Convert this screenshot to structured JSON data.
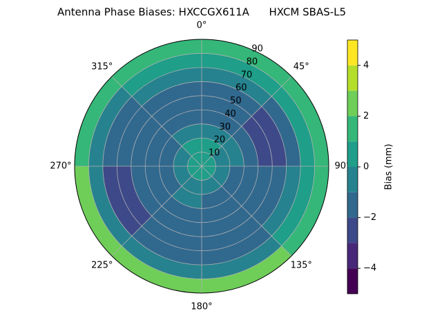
{
  "chart_data": {
    "type": "polar_contour",
    "title": "Antenna Phase Biases: HXCCGX611A      HXCM SBAS-L5",
    "azimuth_edges": [
      0,
      45,
      90,
      135,
      180,
      225,
      270,
      315,
      360
    ],
    "zenith_edges": [
      0,
      10,
      20,
      30,
      40,
      50,
      60,
      70,
      80,
      90
    ],
    "values": [
      [
        0.5,
        0.5,
        0.5,
        0.5,
        0.5,
        0.5,
        0.5,
        0.5
      ],
      [
        0.5,
        -0.5,
        -0.5,
        -0.5,
        -0.5,
        -0.5,
        -0.5,
        0.5
      ],
      [
        -0.5,
        -0.5,
        -1.5,
        -1.5,
        -0.5,
        -1.5,
        -1.5,
        -0.5
      ],
      [
        -1.5,
        -1.5,
        -1.5,
        -1.5,
        -1.5,
        -1.5,
        -1.5,
        -1.5
      ],
      [
        -1.5,
        -2.5,
        -1.5,
        -1.5,
        -1.5,
        -1.5,
        -1.5,
        -1.5
      ],
      [
        -1.5,
        -2.5,
        -1.5,
        -1.5,
        -1.5,
        -2.5,
        -1.5,
        -1.5
      ],
      [
        -0.5,
        -1.5,
        -0.5,
        -1.5,
        -1.5,
        -2.5,
        -1.5,
        -0.5
      ],
      [
        0.5,
        0.5,
        0.5,
        -0.5,
        -0.5,
        -0.5,
        -0.5,
        0.5
      ],
      [
        1.5,
        1.5,
        1.5,
        2.5,
        2.5,
        2.5,
        1.5,
        1.5
      ]
    ],
    "levels": [
      -5,
      -4,
      -3,
      -2,
      -1,
      0,
      1,
      2,
      3,
      4,
      5
    ],
    "colors": [
      "#440154",
      "#482878",
      "#3e4989",
      "#31688e",
      "#26828e",
      "#1f9e89",
      "#35b779",
      "#6ece58",
      "#b5de2b",
      "#fde725"
    ],
    "rlim": [
      0,
      90
    ],
    "rticks": [
      10,
      20,
      30,
      40,
      50,
      60,
      70,
      80,
      90
    ],
    "thetaticks": [
      {
        "value": 0,
        "label": "0°"
      },
      {
        "value": 45,
        "label": "45°"
      },
      {
        "value": 90,
        "label": "90°"
      },
      {
        "value": 135,
        "label": "135°"
      },
      {
        "value": 180,
        "label": "180°"
      },
      {
        "value": 225,
        "label": "225°"
      },
      {
        "value": 270,
        "label": "270°"
      },
      {
        "value": 315,
        "label": "315°"
      }
    ],
    "colorbar_label": "Bias (mm)",
    "colorbar_ticks": [
      {
        "value": -4,
        "label": "−4"
      },
      {
        "value": -2,
        "label": "−2"
      },
      {
        "value": 0,
        "label": "0"
      },
      {
        "value": 2,
        "label": "2"
      },
      {
        "value": 4,
        "label": "4"
      }
    ],
    "grid": true
  }
}
